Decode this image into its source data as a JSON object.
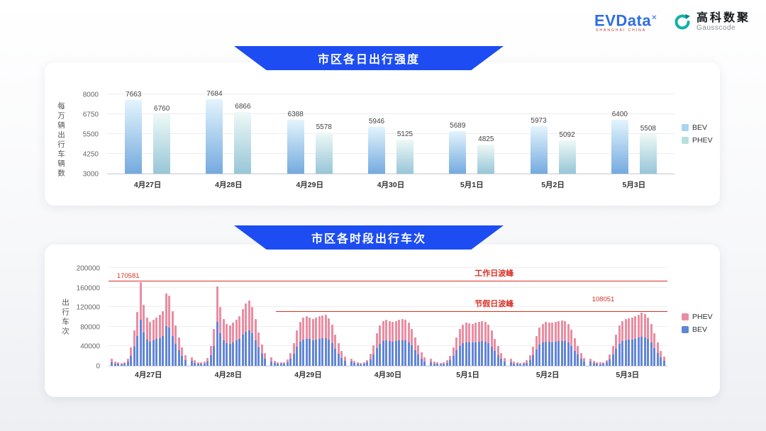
{
  "colors": {
    "banner_blue": "#1d4df2",
    "annotation_red": "#d93025",
    "evdata_blue": "#2e6de4",
    "gausscode_teal": "#12b0a6"
  },
  "header": {
    "evdata": {
      "text": "EVData",
      "sup": "✕",
      "subtext": "SHANGHAI CHINA"
    },
    "gausscode": {
      "cn": "高科数聚",
      "en": "Gausscode"
    }
  },
  "chart_data": [
    {
      "type": "bar",
      "title": "市区各日出行强度",
      "ylabel": "每万辆出行车辆数",
      "categories": [
        "4月27日",
        "4月28日",
        "4月29日",
        "4月30日",
        "5月1日",
        "5月2日",
        "5月3日"
      ],
      "yticks": [
        3000,
        4250,
        5500,
        6750,
        8000
      ],
      "ylim": [
        3000,
        8000
      ],
      "grid": true,
      "legend_position": "right",
      "series": [
        {
          "name": "BEV",
          "values": [
            7663,
            7684,
            6388,
            5946,
            5689,
            5973,
            6400
          ],
          "color_top": "#e3f4fd",
          "color_bottom": "#74aadf",
          "legend_color": "#a9d5f1"
        },
        {
          "name": "PHEV",
          "values": [
            6760,
            6866,
            5578,
            5125,
            4825,
            5092,
            5508
          ],
          "color_top": "#eef9f6",
          "color_bottom": "#97c6d8",
          "legend_color": "#b7e0dc"
        }
      ]
    },
    {
      "type": "bar",
      "stacked": true,
      "title": "市区各时段出行车次",
      "ylabel": "出行车次",
      "categories": [
        "4月27日",
        "4月28日",
        "4月29日",
        "4月30日",
        "5月1日",
        "5月2日",
        "5月3日"
      ],
      "hours_per_day": 24,
      "yticks": [
        0,
        40000,
        80000,
        120000,
        160000,
        200000
      ],
      "ylim": [
        0,
        200000
      ],
      "grid": true,
      "legend_position": "right",
      "legend": [
        "PHEV",
        "BEV"
      ],
      "series": [
        {
          "name": "BEV",
          "color": "#6286d6",
          "values_by_day": [
            [
              7700,
              4950,
              3850,
              3600,
              4400,
              8250,
              20900,
              39600,
              60500,
              93820,
              68750,
              53900,
              49500,
              51700,
              54450,
              57200,
              61600,
              81400,
              78650,
              61600,
              45100,
              31900,
              20900,
              12100
            ],
            [
              9900,
              6050,
              4400,
              3850,
              4950,
              8800,
              22000,
              41250,
              89650,
              66000,
              52250,
              46750,
              45650,
              48400,
              51700,
              55550,
              63800,
              69850,
              73150,
              66550,
              52800,
              37400,
              24200,
              14300
            ],
            [
              9350,
              5500,
              4125,
              3740,
              4400,
              7150,
              14300,
              25300,
              39600,
              49500,
              53900,
              55550,
              54450,
              52800,
              53900,
              55550,
              56650,
              57200,
              53350,
              46200,
              35200,
              25300,
              16500,
              10450
            ],
            [
              8250,
              5225,
              3850,
              3575,
              4125,
              6600,
              13200,
              23100,
              36300,
              45650,
              50050,
              51700,
              50600,
              49500,
              50600,
              51700,
              52250,
              51700,
              48400,
              41800,
              31900,
              23100,
              14850,
              9350
            ],
            [
              7700,
              4950,
              3740,
              3410,
              3960,
              6050,
              11550,
              20350,
              31900,
              41250,
              46200,
              48400,
              47850,
              47300,
              48400,
              49500,
              50050,
              49500,
              46200,
              39600,
              30250,
              22000,
              14300,
              8800
            ],
            [
              7975,
              5060,
              3850,
              3520,
              4070,
              6325,
              12100,
              21450,
              33550,
              42900,
              47300,
              49500,
              48950,
              48400,
              49500,
              50600,
              51150,
              50600,
              47300,
              40700,
              30800,
              22550,
              14575,
              9075
            ],
            [
              8250,
              5225,
              3960,
              3630,
              4180,
              6600,
              12650,
              22550,
              35200,
              45100,
              50050,
              52800,
              53350,
              53900,
              55550,
              57750,
              59430,
              58300,
              54450,
              47300,
              36300,
              26400,
              17050,
              10450
            ]
          ]
        },
        {
          "name": "PHEV",
          "color": "#e98da2",
          "values_by_day": [
            [
              6300,
              4050,
              3150,
              2900,
              3600,
              6750,
              17100,
              32400,
              49500,
              76761,
              56250,
              44100,
              40500,
              42300,
              44550,
              46800,
              50400,
              66600,
              64350,
              50400,
              36900,
              26100,
              17100,
              9900
            ],
            [
              8100,
              4950,
              3600,
              3150,
              4050,
              7200,
              18000,
              33750,
              73350,
              54000,
              42750,
              38250,
              37350,
              39600,
              42300,
              45450,
              52200,
              57150,
              59850,
              54450,
              43200,
              30600,
              19800,
              11700
            ],
            [
              7650,
              4500,
              3375,
              3060,
              3600,
              5850,
              11700,
              20700,
              32400,
              40500,
              44100,
              45450,
              44550,
              43200,
              44100,
              45450,
              46350,
              46800,
              43650,
              37800,
              28800,
              20700,
              13500,
              8550
            ],
            [
              6750,
              4275,
              3150,
              2925,
              3375,
              5400,
              10800,
              18900,
              29700,
              37350,
              40950,
              42300,
              41400,
              40500,
              41400,
              42300,
              42750,
              42300,
              39600,
              34200,
              26100,
              18900,
              12150,
              7650
            ],
            [
              6300,
              4050,
              3060,
              2790,
              3240,
              4950,
              9450,
              16650,
              26100,
              33750,
              37800,
              39600,
              39150,
              38700,
              39600,
              40500,
              40950,
              40500,
              37800,
              32400,
              24750,
              18000,
              11700,
              7200
            ],
            [
              6525,
              4140,
              3150,
              2880,
              3330,
              5175,
              9900,
              17550,
              27450,
              35100,
              38700,
              40500,
              40050,
              39600,
              40500,
              41400,
              41850,
              41400,
              38700,
              33300,
              25200,
              18450,
              11925,
              7425
            ],
            [
              6750,
              4275,
              3240,
              2970,
              3420,
              5400,
              10350,
              18450,
              28800,
              36900,
              40950,
              43200,
              43650,
              44100,
              45450,
              47250,
              48621,
              47700,
              44550,
              38700,
              29700,
              21600,
              13950,
              8550
            ]
          ]
        }
      ],
      "annotations": {
        "lines": [
          {
            "label": "工作日波峰",
            "value": 172000,
            "x_start": 0.0,
            "x_end": 1.0,
            "label_x": 0.69
          },
          {
            "label": "节假日波峰",
            "value": 110000,
            "x_start": 0.3,
            "x_end": 1.0,
            "label_x": 0.69
          }
        ],
        "value_labels": [
          {
            "text": "170581",
            "x": 0.015,
            "bottom_value": 176000
          },
          {
            "text": "108051",
            "x": 0.865,
            "bottom_value": 128000
          }
        ]
      }
    }
  ]
}
